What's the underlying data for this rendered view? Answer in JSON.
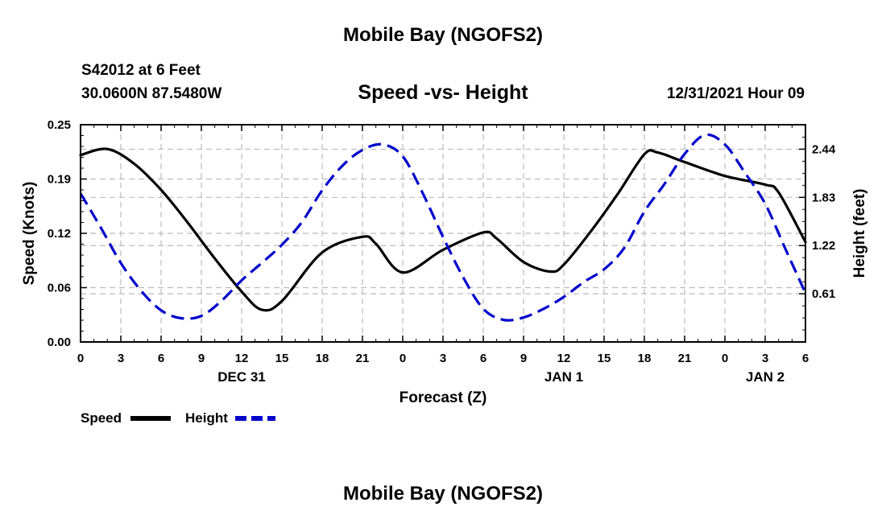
{
  "header": {
    "title": "Mobile Bay (NGOFS2)",
    "station": "S42012 at 6 Feet",
    "coords": "30.0600N  87.5480W",
    "subtitle": "Speed -vs- Height",
    "datetime": "12/31/2021 Hour 09"
  },
  "footer": {
    "title": "Mobile Bay (NGOFS2)"
  },
  "chart_data": {
    "type": "line",
    "xlabel": "Forecast (Z)",
    "x_ticks": [
      "0",
      "3",
      "6",
      "9",
      "12",
      "15",
      "18",
      "21",
      "0",
      "3",
      "6",
      "9",
      "12",
      "15",
      "18",
      "21",
      "0",
      "3",
      "6"
    ],
    "x_range": [
      0,
      54
    ],
    "day_labels": [
      {
        "label": "DEC 31",
        "hour": 12
      },
      {
        "label": "JAN 1",
        "hour": 36
      },
      {
        "label": "JAN 2",
        "hour": 51
      }
    ],
    "y_left": {
      "label": "Speed (Knots)",
      "range": [
        0,
        0.25
      ],
      "ticks": [
        "0.00",
        "0.06",
        "0.12",
        "0.19",
        "0.25"
      ],
      "tick_values": [
        0,
        0.0625,
        0.125,
        0.1875,
        0.25
      ]
    },
    "y_right": {
      "label": "Height (feet)",
      "range": [
        0,
        2.75
      ],
      "ticks": [
        "0.61",
        "1.22",
        "1.83",
        "2.44"
      ],
      "tick_values": [
        0.61,
        1.22,
        1.83,
        2.44
      ]
    },
    "grid": true,
    "legend": {
      "placement": "bottom-left",
      "items": [
        "Speed",
        "Height"
      ]
    },
    "series": [
      {
        "name": "Speed",
        "axis": "left",
        "color": "#000000",
        "style": "solid",
        "x": [
          0,
          2,
          4,
          6,
          8,
          10,
          12,
          13.5,
          15,
          18,
          21,
          22,
          24,
          27,
          30,
          31,
          33,
          35,
          36,
          38,
          40,
          42,
          43,
          45,
          48,
          51,
          52,
          54
        ],
        "y": [
          0.215,
          0.222,
          0.205,
          0.175,
          0.137,
          0.096,
          0.058,
          0.037,
          0.047,
          0.103,
          0.121,
          0.113,
          0.08,
          0.106,
          0.126,
          0.119,
          0.092,
          0.081,
          0.089,
          0.127,
          0.17,
          0.216,
          0.218,
          0.207,
          0.191,
          0.181,
          0.172,
          0.115
        ]
      },
      {
        "name": "Height",
        "axis": "right",
        "color": "#0000cc",
        "style": "dashed",
        "x": [
          0,
          1.5,
          3,
          4.5,
          6,
          7.5,
          9,
          10.5,
          12,
          13.5,
          15,
          16.5,
          18,
          19.5,
          21,
          22.5,
          24,
          25.5,
          27,
          28.5,
          30,
          31.5,
          33,
          34.5,
          36,
          37.5,
          39,
          40.5,
          42,
          43.5,
          45,
          46.5,
          48,
          49.5,
          51,
          52.5,
          54
        ],
        "y": [
          1.88,
          1.45,
          1.0,
          0.65,
          0.4,
          0.3,
          0.33,
          0.52,
          0.78,
          1.0,
          1.23,
          1.52,
          1.92,
          2.23,
          2.43,
          2.5,
          2.35,
          1.88,
          1.33,
          0.82,
          0.42,
          0.28,
          0.31,
          0.42,
          0.57,
          0.76,
          0.92,
          1.19,
          1.65,
          2.0,
          2.38,
          2.62,
          2.5,
          2.14,
          1.75,
          1.18,
          0.62
        ]
      }
    ]
  }
}
